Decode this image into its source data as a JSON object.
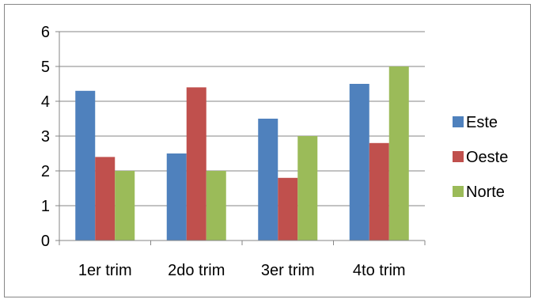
{
  "chart_data": {
    "type": "bar",
    "categories": [
      "1er trim",
      "2do trim",
      "3er trim",
      "4to trim"
    ],
    "series": [
      {
        "name": "Este",
        "values": [
          4.3,
          2.5,
          3.5,
          4.5
        ],
        "color": "#4F81BD"
      },
      {
        "name": "Oeste",
        "values": [
          2.4,
          4.4,
          1.8,
          2.8
        ],
        "color": "#C0504D"
      },
      {
        "name": "Norte",
        "values": [
          2.0,
          2.0,
          3.0,
          5.0
        ],
        "color": "#9BBB59"
      }
    ],
    "yticks": [
      "0",
      "1",
      "2",
      "3",
      "4",
      "5",
      "6"
    ],
    "ylim": [
      0,
      6
    ],
    "grid": true,
    "legend": "right",
    "gridline_color": "#868686",
    "axis_color": "#868686"
  }
}
